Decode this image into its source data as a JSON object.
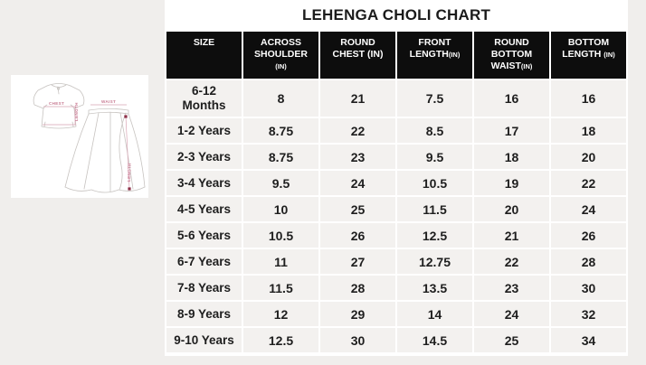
{
  "title": "LEHENGA CHOLI CHART",
  "illustration": {
    "labels": {
      "chest": "CHEST",
      "choli_length": "LENGTH",
      "waist": "WAIST",
      "skirt_length": "LENGTH"
    },
    "line_color": "#c7c3c0",
    "annotation_color": "#d9a4b4",
    "marker_color": "#8e3048"
  },
  "table": {
    "headers": [
      {
        "lines": [
          [
            {
              "t": "SIZE",
              "small": false
            }
          ]
        ]
      },
      {
        "lines": [
          [
            {
              "t": "ACROSS",
              "small": false
            }
          ],
          [
            {
              "t": "SHOULDER",
              "small": false
            }
          ],
          [
            {
              "t": "(IN)",
              "small": true
            }
          ]
        ]
      },
      {
        "lines": [
          [
            {
              "t": "ROUND",
              "small": false
            }
          ],
          [
            {
              "t": "CHEST (IN)",
              "small": false
            }
          ]
        ]
      },
      {
        "lines": [
          [
            {
              "t": "FRONT",
              "small": false
            }
          ],
          [
            {
              "t": "LENGTH",
              "small": false
            },
            {
              "t": "(IN)",
              "small": true
            }
          ]
        ]
      },
      {
        "lines": [
          [
            {
              "t": "ROUND",
              "small": false
            }
          ],
          [
            {
              "t": "BOTTOM",
              "small": false
            }
          ],
          [
            {
              "t": "WAIST",
              "small": false
            },
            {
              "t": "(IN)",
              "small": true
            }
          ]
        ]
      },
      {
        "lines": [
          [
            {
              "t": "BOTTOM",
              "small": false
            }
          ],
          [
            {
              "t": "LENGTH ",
              "small": false
            },
            {
              "t": "(IN)",
              "small": true
            }
          ]
        ]
      }
    ],
    "size_col_lines": [
      [
        "6-12",
        "Months"
      ],
      [
        "1-2 Years"
      ],
      [
        "2-3 Years"
      ],
      [
        "3-4 Years"
      ],
      [
        "4-5 Years"
      ],
      [
        "5-6 Years"
      ],
      [
        "6-7 Years"
      ],
      [
        "7-8 Years"
      ],
      [
        "8-9 Years"
      ],
      [
        "9-10 Years"
      ]
    ]
  },
  "chart_data": {
    "type": "table",
    "title": "LEHENGA CHOLI CHART",
    "columns": [
      "SIZE",
      "ACROSS SHOULDER (IN)",
      "ROUND CHEST (IN)",
      "FRONT LENGTH (IN)",
      "ROUND BOTTOM WAIST (IN)",
      "BOTTOM LENGTH (IN)"
    ],
    "rows": [
      [
        "6-12 Months",
        "8",
        "21",
        "7.5",
        "16",
        "16"
      ],
      [
        "1-2 Years",
        "8.75",
        "22",
        "8.5",
        "17",
        "18"
      ],
      [
        "2-3 Years",
        "8.75",
        "23",
        "9.5",
        "18",
        "20"
      ],
      [
        "3-4 Years",
        "9.5",
        "24",
        "10.5",
        "19",
        "22"
      ],
      [
        "4-5 Years",
        "10",
        "25",
        "11.5",
        "20",
        "24"
      ],
      [
        "5-6 Years",
        "10.5",
        "26",
        "12.5",
        "21",
        "26"
      ],
      [
        "6-7 Years",
        "11",
        "27",
        "12.75",
        "22",
        "28"
      ],
      [
        "7-8 Years",
        "11.5",
        "28",
        "13.5",
        "23",
        "30"
      ],
      [
        "8-9 Years",
        "12",
        "29",
        "14",
        "24",
        "32"
      ],
      [
        "9-10 Years",
        "12.5",
        "30",
        "14.5",
        "25",
        "34"
      ]
    ]
  },
  "colors": {
    "page_bg": "#f0eeec",
    "panel_bg": "#ffffff",
    "header_bg": "#0d0d0d",
    "header_text": "#ffffff",
    "row_bg": "#f3f1ef",
    "grid": "#ffffff",
    "text": "#1e1e1e"
  }
}
